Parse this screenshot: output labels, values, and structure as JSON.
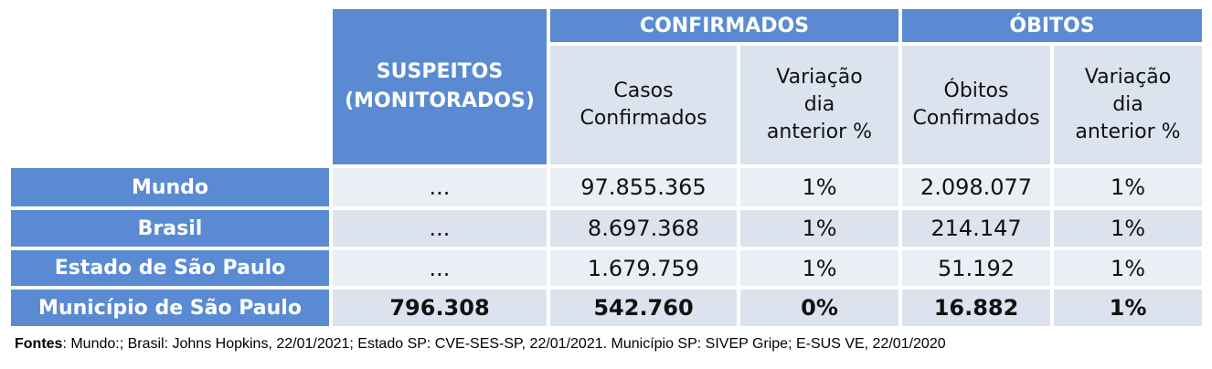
{
  "table": {
    "suspects_header": "SUSPEITOS\n(MONITORADOS)",
    "group_headers": [
      "CONFIRMADOS",
      "ÓBITOS"
    ],
    "column_headers": [
      "Casos\nConfirmados",
      "Variação\ndia\nanterior %",
      "Óbitos\nConfirmados",
      "Variação\ndia\nanterior %"
    ],
    "rows": [
      {
        "label": "Mundo",
        "cells": [
          "...",
          "97.855.365",
          "1%",
          "2.098.077",
          "1%"
        ]
      },
      {
        "label": "Brasil",
        "cells": [
          "...",
          "8.697.368",
          "1%",
          "214.147",
          "1%"
        ]
      },
      {
        "label": "Estado de São Paulo",
        "cells": [
          "...",
          "1.679.759",
          "1%",
          "51.192",
          "1%"
        ]
      },
      {
        "label": "Município de São Paulo",
        "cells": [
          "796.308",
          "542.760",
          "0%",
          "16.882",
          "1%"
        ]
      }
    ]
  },
  "footer": {
    "label": "Fontes",
    "text": ": Mundo:; Brasil: Johns Hopkins, 22/01/2021; Estado SP: CVE-SES-SP, 22/01/2021. Município SP: SIVEP Gripe; E-SUS VE, 22/01/2020"
  }
}
